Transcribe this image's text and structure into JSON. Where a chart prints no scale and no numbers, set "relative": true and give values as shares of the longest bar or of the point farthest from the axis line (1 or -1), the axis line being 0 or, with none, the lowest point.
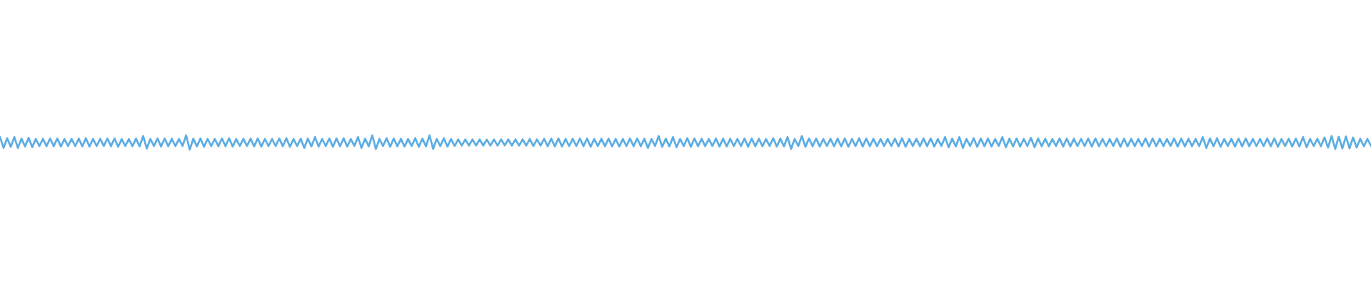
{
  "chart_data": {
    "type": "line",
    "relative": true,
    "color": "#5dade2",
    "categories": [
      null,
      null,
      null,
      null,
      null,
      null,
      null,
      null,
      null,
      null,
      null,
      null,
      null,
      null,
      null,
      null,
      null,
      null,
      null,
      null,
      null,
      null,
      null,
      null,
      null,
      null,
      null,
      null,
      null,
      null,
      null,
      null,
      null,
      null,
      null,
      null,
      null,
      null,
      null,
      null,
      null,
      null,
      null,
      null,
      null,
      null,
      null,
      null,
      null,
      null,
      null,
      null,
      null,
      null,
      null,
      null,
      null,
      null,
      null,
      null,
      null,
      null,
      null,
      null,
      null,
      null,
      null,
      null,
      null,
      null,
      null,
      null,
      null,
      null,
      null,
      null,
      null,
      null,
      null,
      null,
      null,
      null,
      null,
      null,
      null,
      null,
      null,
      null,
      null,
      null,
      null,
      null,
      null,
      null,
      null,
      null,
      null,
      null,
      null,
      null,
      null,
      null,
      null,
      null,
      null,
      null,
      null,
      null,
      null,
      null,
      null,
      null,
      null,
      null,
      null,
      null,
      null,
      null,
      null,
      null,
      null,
      null,
      null,
      null,
      null,
      null,
      null,
      null,
      null,
      null,
      null,
      null,
      null,
      null,
      null,
      null,
      null,
      null,
      null,
      null,
      null,
      null,
      null,
      null,
      null,
      null,
      null,
      null,
      null,
      null,
      null,
      null,
      null,
      null,
      null,
      null,
      null,
      null,
      null,
      null,
      null,
      null,
      null,
      null,
      null,
      null,
      null,
      null,
      null,
      null,
      null,
      null,
      null,
      null,
      null,
      null,
      null,
      null,
      null,
      null,
      null,
      null,
      null,
      null,
      null,
      null,
      null,
      null,
      null,
      null,
      null,
      null,
      null,
      null,
      null,
      null,
      null,
      null,
      null,
      null,
      null,
      null,
      null,
      null,
      null,
      null,
      null,
      null,
      null,
      null,
      null,
      null,
      null,
      null,
      null,
      null,
      null,
      null,
      null,
      null,
      null,
      null,
      null,
      null,
      null,
      null,
      null,
      null,
      null,
      null,
      null,
      null,
      null,
      null,
      null,
      null,
      null,
      null,
      null,
      null,
      null,
      null,
      null,
      null,
      null,
      null,
      null,
      null,
      null,
      null,
      null,
      null,
      null,
      null,
      null,
      null,
      null,
      null,
      null,
      null,
      null,
      null,
      null,
      null,
      null,
      null,
      null,
      null,
      null,
      null,
      null,
      null,
      null,
      null,
      null,
      null,
      null,
      null,
      null,
      null,
      null,
      null,
      null,
      null,
      null,
      null,
      null,
      null,
      null,
      null,
      null,
      null,
      null,
      null,
      null,
      null,
      null,
      null,
      null,
      null,
      null,
      null,
      null,
      null,
      null,
      null,
      null,
      null,
      null,
      null,
      null,
      null,
      null,
      null,
      null,
      null,
      null,
      null,
      null,
      null,
      null,
      null,
      null,
      null,
      null,
      null,
      null,
      null,
      null,
      null,
      null,
      null,
      null,
      null,
      null,
      null,
      null,
      null,
      null,
      null,
      null,
      null,
      null,
      null,
      null,
      null,
      null,
      null,
      null,
      null,
      null,
      null,
      null,
      null,
      null,
      null,
      null,
      null,
      null,
      null,
      null,
      null,
      null,
      null,
      null,
      null,
      null,
      null,
      null,
      null,
      null,
      null,
      null,
      null,
      null,
      null,
      null,
      null,
      null,
      null,
      null,
      null,
      null,
      null
    ],
    "values": [
      0.88,
      0.12,
      0.8,
      0.2,
      0.88,
      0.12,
      0.77,
      0.23,
      0.83,
      0.17,
      0.75,
      0.25,
      0.76,
      0.24,
      0.78,
      0.24,
      0.78,
      0.22,
      0.74,
      0.26,
      0.75,
      0.25,
      0.77,
      0.23,
      0.8,
      0.22,
      0.75,
      0.25,
      0.76,
      0.26,
      0.78,
      0.24,
      0.78,
      0.2,
      0.74,
      0.26,
      0.74,
      0.24,
      0.77,
      0.23,
      0.95,
      0.08,
      0.75,
      0.25,
      0.78,
      0.22,
      0.78,
      0.24,
      0.76,
      0.25,
      0.74,
      0.26,
      1.0,
      0.0,
      0.77,
      0.23,
      0.78,
      0.2,
      0.75,
      0.25,
      0.75,
      0.24,
      0.78,
      0.24,
      0.8,
      0.22,
      0.74,
      0.26,
      0.76,
      0.26,
      0.77,
      0.23,
      0.78,
      0.22,
      0.75,
      0.25,
      0.75,
      0.25,
      0.78,
      0.24,
      0.8,
      0.2,
      0.74,
      0.26,
      0.76,
      0.12,
      0.77,
      0.23,
      0.88,
      0.22,
      0.75,
      0.25,
      0.78,
      0.2,
      0.78,
      0.24,
      0.8,
      0.22,
      0.74,
      0.26,
      0.88,
      0.12,
      0.77,
      0.23,
      1.0,
      0.05,
      0.75,
      0.25,
      0.8,
      0.2,
      0.78,
      0.24,
      0.76,
      0.22,
      0.74,
      0.26,
      0.8,
      0.2,
      0.77,
      0.23,
      1.0,
      0.05,
      0.75,
      0.25,
      0.8,
      0.22,
      0.74,
      0.26,
      0.72,
      0.28,
      0.72,
      0.28,
      0.72,
      0.28,
      0.71,
      0.29,
      0.7,
      0.28,
      0.72,
      0.28,
      0.72,
      0.3,
      0.71,
      0.29,
      0.72,
      0.28,
      0.72,
      0.28,
      0.74,
      0.26,
      0.72,
      0.28,
      0.76,
      0.24,
      0.77,
      0.23,
      0.78,
      0.22,
      0.75,
      0.25,
      0.76,
      0.25,
      0.78,
      0.24,
      0.78,
      0.2,
      0.74,
      0.26,
      0.76,
      0.24,
      0.77,
      0.23,
      0.75,
      0.22,
      0.75,
      0.25,
      0.78,
      0.24,
      0.78,
      0.24,
      0.76,
      0.12,
      0.74,
      0.26,
      0.95,
      0.2,
      0.77,
      0.23,
      0.88,
      0.17,
      0.75,
      0.25,
      0.8,
      0.2,
      0.78,
      0.24,
      0.76,
      0.24,
      0.74,
      0.26,
      0.78,
      0.22,
      0.77,
      0.23,
      0.76,
      0.25,
      0.75,
      0.25,
      0.78,
      0.2,
      0.78,
      0.24,
      0.76,
      0.24,
      0.74,
      0.26,
      0.8,
      0.22,
      0.77,
      0.23,
      0.88,
      0.05,
      0.75,
      0.25,
      0.95,
      0.2,
      0.78,
      0.24,
      0.78,
      0.22,
      0.74,
      0.26,
      0.76,
      0.24,
      0.77,
      0.23,
      0.78,
      0.2,
      0.75,
      0.25,
      0.8,
      0.22,
      0.78,
      0.24,
      0.76,
      0.24,
      0.74,
      0.26,
      0.75,
      0.25,
      0.77,
      0.23,
      0.8,
      0.2,
      0.75,
      0.25,
      0.76,
      0.24,
      0.78,
      0.24,
      0.78,
      0.22,
      0.74,
      0.26,
      0.88,
      0.17,
      0.77,
      0.23,
      0.88,
      0.12,
      0.75,
      0.25,
      0.8,
      0.2,
      0.78,
      0.24,
      0.78,
      0.22,
      0.74,
      0.26,
      0.88,
      0.17,
      0.77,
      0.23,
      0.78,
      0.22,
      0.75,
      0.25,
      0.83,
      0.17,
      0.78,
      0.24,
      0.76,
      0.24,
      0.74,
      0.26,
      0.78,
      0.22,
      0.77,
      0.23,
      0.76,
      0.25,
      0.75,
      0.25,
      0.78,
      0.22,
      0.78,
      0.24,
      0.75,
      0.24,
      0.74,
      0.26,
      0.78,
      0.2,
      0.77,
      0.23,
      0.76,
      0.24,
      0.75,
      0.25,
      0.78,
      0.22,
      0.78,
      0.24,
      0.76,
      0.25,
      0.74,
      0.26,
      0.78,
      0.22,
      0.77,
      0.23,
      0.76,
      0.24,
      0.75,
      0.25,
      0.88,
      0.12,
      0.78,
      0.24,
      0.8,
      0.2,
      0.74,
      0.26,
      0.76,
      0.22,
      0.77,
      0.23,
      0.78,
      0.24,
      0.75,
      0.25,
      0.75,
      0.25,
      0.78,
      0.24,
      0.78,
      0.2,
      0.74,
      0.26,
      0.76,
      0.22,
      0.77,
      0.23,
      0.88,
      0.17,
      0.75,
      0.25,
      0.76,
      0.24,
      0.85,
      0.15,
      0.95,
      0.05,
      0.9,
      0.08,
      0.92,
      0.1,
      0.85,
      0.15,
      0.76,
      0.24,
      0.75,
      0.25
    ]
  }
}
